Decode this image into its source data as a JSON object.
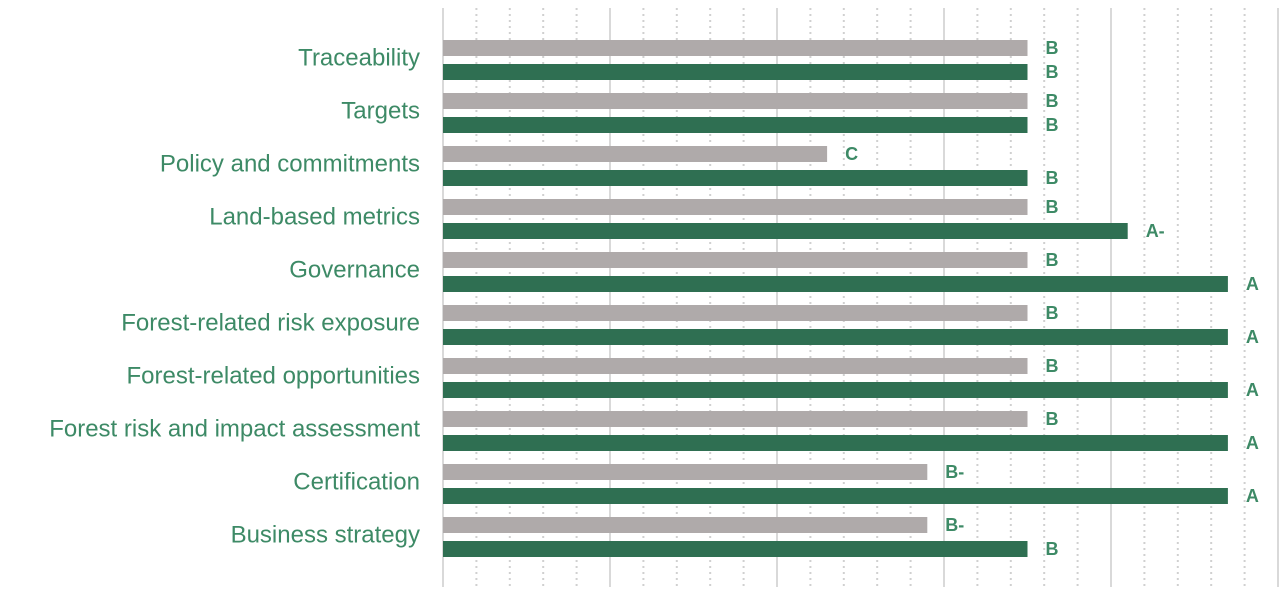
{
  "chart_data": {
    "type": "bar",
    "orientation": "horizontal",
    "categories": [
      "Traceability",
      "Targets",
      "Policy and commitments",
      "Land-based metrics",
      "Governance",
      "Forest-related risk exposure",
      "Forest-related opportunities",
      "Forest risk and impact assessment",
      "Certification",
      "Business strategy"
    ],
    "series": [
      {
        "color": "#afaaaa",
        "values": [
          70,
          70,
          46,
          70,
          70,
          70,
          70,
          70,
          58,
          58
        ],
        "value_labels": [
          "B",
          "B",
          "C",
          "B",
          "B",
          "B",
          "B",
          "B",
          "B-",
          "B-"
        ]
      },
      {
        "color": "#2f6f52",
        "values": [
          70,
          70,
          70,
          82,
          94,
          94,
          94,
          94,
          94,
          70
        ],
        "value_labels": [
          "B",
          "B",
          "B",
          "A-",
          "A",
          "A",
          "A",
          "A",
          "A",
          "B"
        ]
      }
    ],
    "xlim": [
      0,
      100
    ],
    "xticks": [
      0,
      20,
      40,
      60,
      80,
      100
    ],
    "minor_xticks": [
      4,
      8,
      12,
      16,
      24,
      28,
      32,
      36,
      44,
      48,
      52,
      56,
      64,
      68,
      72,
      76,
      84,
      88,
      92,
      96
    ],
    "grid": true,
    "label_color": "#3d8a66"
  }
}
